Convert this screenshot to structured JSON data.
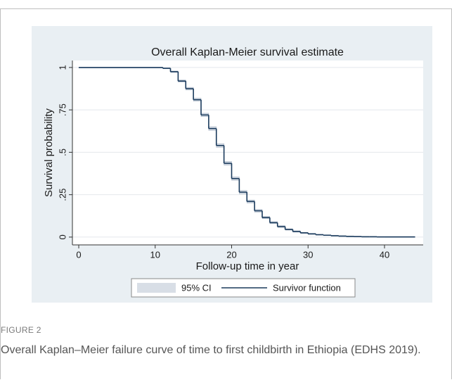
{
  "chart_data": {
    "type": "step",
    "title": "Overall Kaplan-Meier survival estimate",
    "x_label": "Follow-up time in year",
    "y_label": "Survival probability",
    "x": [
      0,
      11,
      12,
      13,
      14,
      15,
      16,
      17,
      18,
      19,
      20,
      21,
      22,
      23,
      24,
      25,
      26,
      27,
      28,
      29,
      30,
      31,
      32,
      33,
      34,
      35,
      36,
      37,
      38,
      39,
      40,
      44
    ],
    "series": [
      {
        "name": "95% CI",
        "color": "#d8dee6",
        "lower": [
          1,
          0.993,
          0.971,
          0.914,
          0.867,
          0.801,
          0.71,
          0.629,
          0.529,
          0.424,
          0.335,
          0.255,
          0.201,
          0.147,
          0.108,
          0.079,
          0.057,
          0.041,
          0.029,
          0.022,
          0.016,
          0.012,
          0.009,
          0.006,
          0.005,
          0.003,
          0.002,
          0.001,
          0.001,
          0,
          0,
          0
        ],
        "upper": [
          1,
          0.997,
          0.979,
          0.926,
          0.883,
          0.819,
          0.73,
          0.651,
          0.551,
          0.446,
          0.355,
          0.275,
          0.219,
          0.163,
          0.122,
          0.091,
          0.067,
          0.049,
          0.037,
          0.028,
          0.022,
          0.016,
          0.013,
          0.01,
          0.007,
          0.005,
          0.004,
          0.003,
          0.003,
          0.002,
          0.002,
          0.002
        ]
      },
      {
        "name": "Survivor function",
        "color": "#1a3a5c",
        "values": [
          1,
          0.995,
          0.975,
          0.92,
          0.875,
          0.81,
          0.72,
          0.64,
          0.54,
          0.435,
          0.345,
          0.265,
          0.21,
          0.155,
          0.115,
          0.085,
          0.062,
          0.045,
          0.033,
          0.025,
          0.019,
          0.014,
          0.011,
          0.008,
          0.006,
          0.004,
          0.003,
          0.002,
          0.002,
          0.001,
          0.001,
          0.001
        ]
      }
    ],
    "xlim": [
      -0.83,
      45.06
    ],
    "xticks": [
      0,
      10,
      20,
      30,
      40
    ],
    "ylim": [
      -0.046,
      1.041
    ],
    "yticks": [
      0,
      {
        "value": 0.25,
        "label": ".25"
      },
      {
        "value": 0.5,
        "label": ".5"
      },
      {
        "value": 0.75,
        "label": ".75"
      },
      1
    ],
    "grid": true,
    "legend": "bottom"
  },
  "figure_label": "FIGURE 2",
  "caption": "Overall Kaplan–Meier failure curve of time to first childbirth in Ethiopia (EDHS 2019)."
}
